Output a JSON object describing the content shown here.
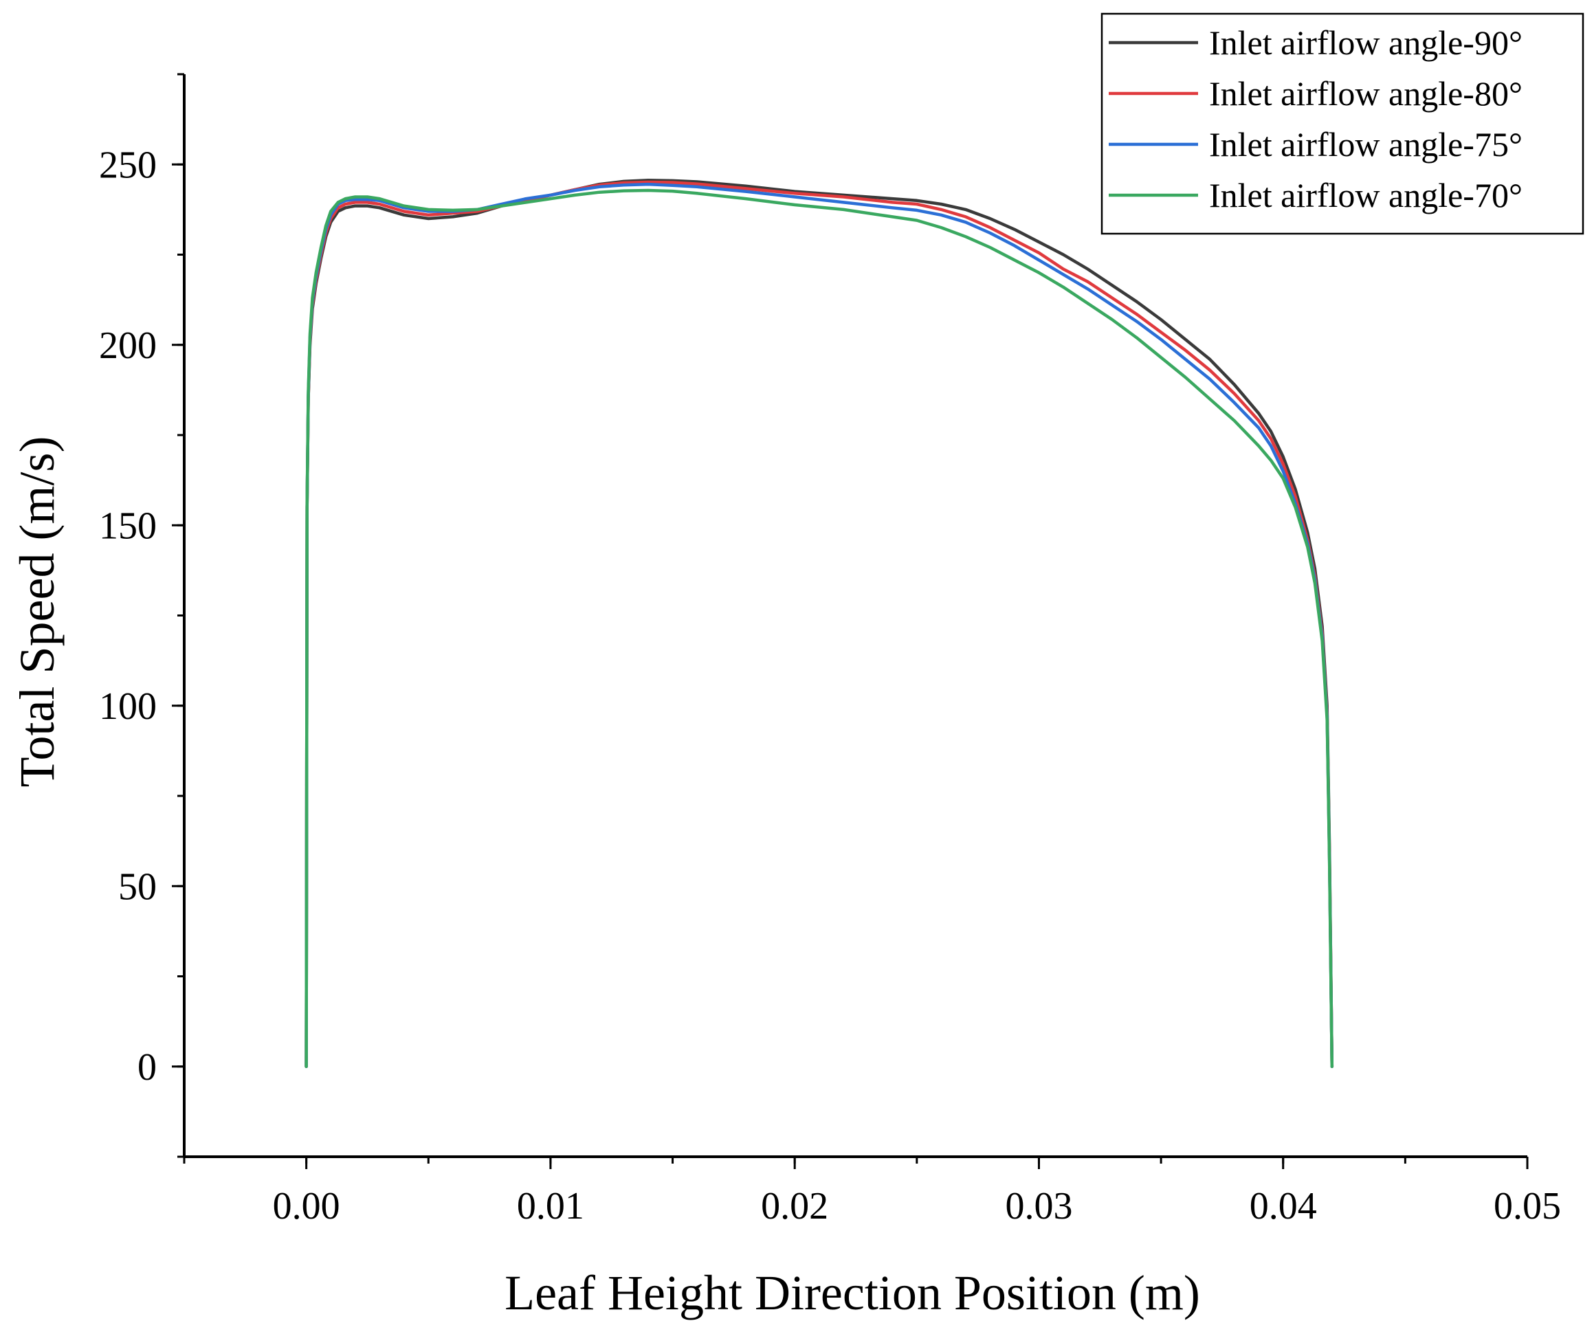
{
  "chart_data": {
    "type": "line",
    "title": "",
    "xlabel": "Leaf Height Direction Position (m)",
    "ylabel": "Total Speed (m/s)",
    "xlim": [
      -0.005,
      0.05
    ],
    "ylim": [
      -25,
      275
    ],
    "xticks": [
      0.0,
      0.01,
      0.02,
      0.03,
      0.04,
      0.05
    ],
    "xtick_labels": [
      "0.00",
      "0.01",
      "0.02",
      "0.03",
      "0.04",
      "0.05"
    ],
    "yticks": [
      0,
      50,
      100,
      150,
      200,
      250
    ],
    "ytick_labels": [
      "0",
      "50",
      "100",
      "150",
      "200",
      "250"
    ],
    "grid": false,
    "legend_position": "top-right",
    "series": [
      {
        "name": "Inlet airflow angle-90°",
        "color": "#3a3a3a",
        "x": [
          0.0,
          3e-05,
          8e-05,
          0.00015,
          0.00025,
          0.0004,
          0.0006,
          0.0008,
          0.001,
          0.0013,
          0.0016,
          0.002,
          0.0025,
          0.003,
          0.004,
          0.005,
          0.006,
          0.007,
          0.008,
          0.009,
          0.01,
          0.011,
          0.012,
          0.013,
          0.014,
          0.015,
          0.016,
          0.018,
          0.02,
          0.022,
          0.024,
          0.025,
          0.026,
          0.027,
          0.028,
          0.029,
          0.03,
          0.031,
          0.032,
          0.033,
          0.034,
          0.035,
          0.036,
          0.037,
          0.038,
          0.039,
          0.0395,
          0.04,
          0.0405,
          0.041,
          0.0413,
          0.0416,
          0.0418,
          0.04185,
          0.0419,
          0.04195,
          0.042
        ],
        "values": [
          0,
          155,
          185,
          200,
          210,
          217,
          224,
          230,
          234,
          237,
          238,
          238.5,
          238.5,
          238,
          236,
          235,
          235.5,
          236.5,
          238.5,
          240,
          241.5,
          243,
          244.5,
          245.3,
          245.6,
          245.5,
          245.2,
          244,
          242.5,
          241.5,
          240.5,
          240,
          239,
          237.5,
          235,
          232,
          228.5,
          225,
          221,
          216.5,
          212,
          207,
          201.5,
          196,
          189,
          181,
          176,
          169,
          160,
          148,
          138,
          122,
          100,
          80,
          60,
          30,
          0
        ]
      },
      {
        "name": "Inlet airflow angle-80°",
        "color": "#e03a3e",
        "x": [
          0.0,
          3e-05,
          8e-05,
          0.00015,
          0.00025,
          0.0004,
          0.0006,
          0.0008,
          0.001,
          0.0013,
          0.0016,
          0.002,
          0.0025,
          0.003,
          0.004,
          0.005,
          0.006,
          0.007,
          0.008,
          0.009,
          0.01,
          0.011,
          0.012,
          0.013,
          0.014,
          0.015,
          0.016,
          0.018,
          0.02,
          0.022,
          0.024,
          0.025,
          0.026,
          0.027,
          0.028,
          0.029,
          0.03,
          0.031,
          0.032,
          0.033,
          0.034,
          0.035,
          0.036,
          0.037,
          0.038,
          0.039,
          0.0395,
          0.04,
          0.0405,
          0.041,
          0.0413,
          0.0416,
          0.0418,
          0.04185,
          0.0419,
          0.04195,
          0.042
        ],
        "values": [
          0,
          155,
          185,
          201,
          211,
          218,
          225,
          231,
          235,
          238,
          239,
          239.5,
          239.5,
          239,
          237,
          236,
          236.5,
          237,
          238.5,
          240,
          241.5,
          243,
          244.3,
          244.9,
          245.1,
          245,
          244.6,
          243.3,
          242,
          241,
          239.5,
          239,
          237.5,
          235.5,
          232.5,
          229,
          225.5,
          221,
          217.5,
          213,
          208.5,
          203.5,
          198.5,
          193,
          186.5,
          179,
          174,
          167,
          158,
          146,
          136,
          120,
          98,
          78,
          58,
          30,
          0
        ]
      },
      {
        "name": "Inlet airflow angle-75°",
        "color": "#2b6fd6",
        "x": [
          0.0,
          3e-05,
          8e-05,
          0.00015,
          0.00025,
          0.0004,
          0.0006,
          0.0008,
          0.001,
          0.0013,
          0.0016,
          0.002,
          0.0025,
          0.003,
          0.004,
          0.005,
          0.006,
          0.007,
          0.008,
          0.009,
          0.01,
          0.011,
          0.012,
          0.013,
          0.014,
          0.015,
          0.016,
          0.018,
          0.02,
          0.022,
          0.024,
          0.025,
          0.026,
          0.027,
          0.028,
          0.029,
          0.03,
          0.031,
          0.032,
          0.033,
          0.034,
          0.035,
          0.036,
          0.037,
          0.038,
          0.039,
          0.0395,
          0.04,
          0.0405,
          0.041,
          0.0413,
          0.0416,
          0.0418,
          0.04185,
          0.0419,
          0.04195,
          0.042
        ],
        "values": [
          0,
          155,
          186,
          202,
          212,
          219,
          226,
          232,
          236,
          239,
          240,
          240.3,
          240.3,
          240,
          238,
          237,
          237,
          237.5,
          239,
          240.5,
          241.5,
          242.8,
          243.8,
          244.3,
          244.5,
          244.2,
          243.8,
          242.5,
          241,
          239.5,
          238,
          237.3,
          236,
          234,
          231,
          227.5,
          223.5,
          219.5,
          215.5,
          211,
          206.5,
          201.5,
          196,
          190.5,
          184,
          177,
          172,
          165,
          156,
          145,
          135,
          119,
          97,
          77,
          57,
          29,
          0
        ]
      },
      {
        "name": "Inlet airflow angle-70°",
        "color": "#3aa860",
        "x": [
          0.0,
          3e-05,
          8e-05,
          0.00015,
          0.00025,
          0.0004,
          0.0006,
          0.0008,
          0.001,
          0.0013,
          0.0016,
          0.002,
          0.0025,
          0.003,
          0.004,
          0.005,
          0.006,
          0.007,
          0.008,
          0.009,
          0.01,
          0.011,
          0.012,
          0.013,
          0.014,
          0.015,
          0.016,
          0.018,
          0.02,
          0.022,
          0.024,
          0.025,
          0.026,
          0.027,
          0.028,
          0.029,
          0.03,
          0.031,
          0.032,
          0.033,
          0.034,
          0.035,
          0.036,
          0.037,
          0.038,
          0.039,
          0.0395,
          0.04,
          0.0405,
          0.041,
          0.0413,
          0.0416,
          0.0418,
          0.04185,
          0.0419,
          0.04195,
          0.042
        ],
        "values": [
          0,
          156,
          187,
          203,
          213,
          220,
          227,
          233,
          237,
          239.5,
          240.5,
          241,
          241,
          240.5,
          238.5,
          237.5,
          237.3,
          237.5,
          238.5,
          239.5,
          240.5,
          241.5,
          242.3,
          242.7,
          242.8,
          242.6,
          242,
          240.5,
          238.8,
          237.5,
          235.5,
          234.5,
          232.5,
          230,
          227,
          223.5,
          220,
          216,
          211.5,
          207,
          202,
          196.5,
          191,
          185,
          179,
          172,
          168,
          163,
          155,
          144,
          134,
          118,
          96,
          76,
          56,
          28,
          0
        ]
      }
    ]
  }
}
